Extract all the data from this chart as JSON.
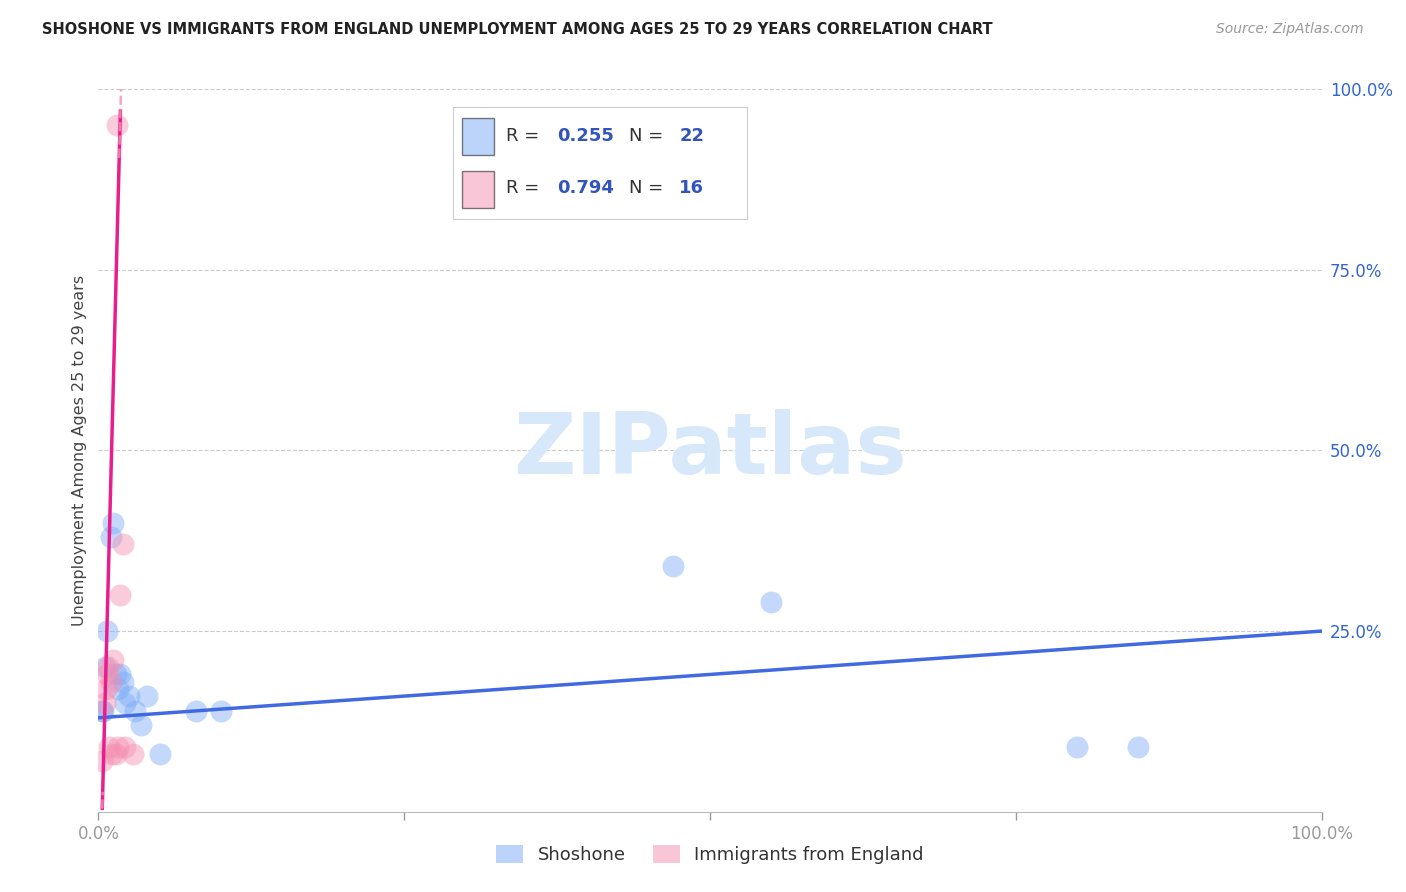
{
  "title": "SHOSHONE VS IMMIGRANTS FROM ENGLAND UNEMPLOYMENT AMONG AGES 25 TO 29 YEARS CORRELATION CHART",
  "source": "Source: ZipAtlas.com",
  "ylabel": "Unemployment Among Ages 25 to 29 years",
  "xlim": [
    0,
    100
  ],
  "ylim": [
    0,
    100
  ],
  "x_tick_vals": [
    0,
    25,
    50,
    75,
    100
  ],
  "y_tick_vals_right": [
    0,
    25,
    50,
    75,
    100
  ],
  "y_tick_labels_right": [
    "",
    "25.0%",
    "50.0%",
    "75.0%",
    "100.0%"
  ],
  "blue_R": "0.255",
  "blue_N": "22",
  "pink_R": "0.794",
  "pink_N": "16",
  "blue_label": "Shoshone",
  "pink_label": "Immigrants from England",
  "blue_scatter_color": "#7BAAF7",
  "pink_scatter_color": "#F48FB1",
  "blue_line_color": "#4169E1",
  "pink_line_color": "#E91E8C",
  "legend_color": "#3355BB",
  "watermark_color": "#D6E8FA",
  "watermark_text": "ZIPatlas",
  "blue_x": [
    0.5,
    0.7,
    1.0,
    1.2,
    1.4,
    1.6,
    1.8,
    2.0,
    2.2,
    2.5,
    3.0,
    3.5,
    4.0,
    5.0,
    8.0,
    10.0,
    47.0,
    55.0,
    80.0,
    85.0,
    0.3,
    0.4
  ],
  "blue_y": [
    20.0,
    25.0,
    38.0,
    40.0,
    19.0,
    17.0,
    19.0,
    18.0,
    15.0,
    16.0,
    14.0,
    12.0,
    16.0,
    8.0,
    14.0,
    14.0,
    34.0,
    29.0,
    9.0,
    9.0,
    14.0,
    14.0
  ],
  "pink_x": [
    0.3,
    0.5,
    0.6,
    0.7,
    0.8,
    0.9,
    1.0,
    1.1,
    1.2,
    1.4,
    1.5,
    1.6,
    1.8,
    2.0,
    2.2,
    2.8
  ],
  "pink_y": [
    7.0,
    15.0,
    17.0,
    19.0,
    20.0,
    9.0,
    18.0,
    8.0,
    21.0,
    8.0,
    95.0,
    9.0,
    30.0,
    37.0,
    9.0,
    8.0
  ],
  "blue_trend_x0": 0,
  "blue_trend_x1": 100,
  "blue_trend_y0": 13,
  "blue_trend_y1": 25,
  "pink_slope": 65,
  "pink_intercept": -20,
  "pink_solid_x0": 0.3,
  "pink_solid_x1": 1.8,
  "pink_dashed_lo_x0": 0.0,
  "pink_dashed_lo_x1": 0.35,
  "pink_dashed_hi_x0": 1.7,
  "pink_dashed_hi_x1": 2.5
}
